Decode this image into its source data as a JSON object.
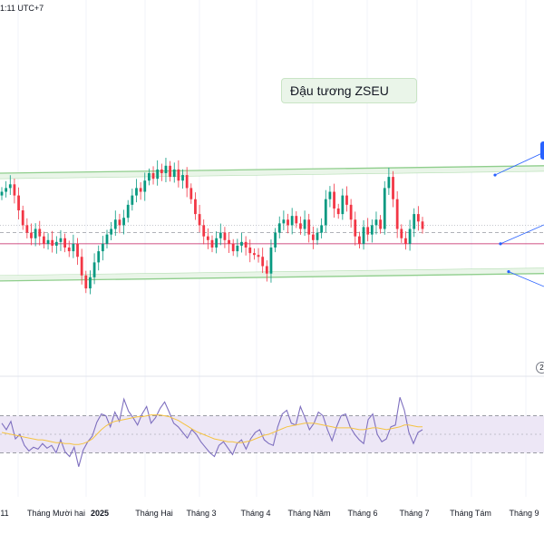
{
  "header": {
    "timestamp": "1:11 UTC+7"
  },
  "annotation": {
    "title": "Đậu tương ZSEU"
  },
  "marker": {
    "label": "2"
  },
  "colors": {
    "up": "#089981",
    "down": "#f23645",
    "channel": "#8fce8c",
    "channel_fill": "#e9f5e8",
    "support": "#c2185b",
    "rsi_line": "#7e6fbf",
    "rsi_ma": "#f5c342",
    "rsi_band": "#ede7f6",
    "callout": "#2962ff"
  },
  "chart_data": [
    {
      "type": "candlestick",
      "title": "",
      "x_axis_labels": [
        "11",
        "Tháng Mười hai",
        "2025",
        "Tháng Hai",
        "Tháng 3",
        "Tháng 4",
        "Tháng Năm",
        "Tháng 6",
        "Tháng 7",
        "Tháng Tám",
        "Tháng 9"
      ],
      "ylim": [
        0,
        100
      ],
      "channel_upper_start": 80,
      "channel_upper_end": 84,
      "channel_lower_start": 22,
      "channel_lower_end": 26,
      "support_level": 42,
      "dashed_level": 48,
      "dotted_level": 52,
      "close": [
        70,
        72,
        74,
        68,
        60,
        52,
        48,
        45,
        50,
        46,
        42,
        44,
        41,
        43,
        45,
        40,
        38,
        42,
        35,
        25,
        18,
        24,
        32,
        38,
        42,
        47,
        50,
        55,
        52,
        56,
        63,
        68,
        72,
        70,
        76,
        80,
        77,
        82,
        80,
        84,
        78,
        82,
        76,
        79,
        72,
        66,
        58,
        52,
        46,
        44,
        40,
        45,
        48,
        44,
        42,
        38,
        41,
        43,
        40,
        37,
        36,
        35,
        30,
        26,
        40,
        48,
        53,
        55,
        52,
        57,
        53,
        50,
        55,
        47,
        44,
        48,
        52,
        66,
        70,
        61,
        58,
        68,
        63,
        55,
        46,
        42,
        51,
        47,
        52,
        55,
        50,
        72,
        78,
        66,
        50,
        45,
        42,
        50,
        58,
        54,
        50
      ]
    },
    {
      "type": "line",
      "title": "",
      "ylim": [
        0,
        100
      ],
      "band": [
        30,
        70
      ],
      "midline": 50,
      "series": [
        {
          "values": [
            62,
            55,
            64,
            45,
            50,
            38,
            32,
            36,
            34,
            40,
            35,
            38,
            30,
            44,
            31,
            26,
            36,
            15,
            33,
            42,
            48,
            63,
            72,
            70,
            58,
            74,
            64,
            88,
            75,
            68,
            60,
            72,
            80,
            62,
            68,
            78,
            85,
            74,
            62,
            58,
            52,
            46,
            55,
            50,
            42,
            36,
            30,
            26,
            38,
            42,
            35,
            28,
            40,
            44,
            34,
            45,
            52,
            55,
            44,
            40,
            38,
            58,
            72,
            76,
            62,
            60,
            80,
            68,
            55,
            62,
            74,
            70,
            55,
            43,
            58,
            70,
            72,
            58,
            50,
            44,
            40,
            66,
            72,
            50,
            42,
            45,
            58,
            60,
            90,
            76,
            52,
            40,
            52,
            55
          ]
        },
        {
          "values": [
            52,
            51,
            50,
            49,
            48,
            47,
            46,
            45,
            44,
            44,
            43,
            42,
            41,
            41,
            40,
            40,
            39,
            39,
            40,
            42,
            45,
            50,
            55,
            59,
            62,
            64,
            65,
            66,
            67,
            68,
            69,
            69,
            70,
            71,
            71,
            71,
            70,
            69,
            67,
            65,
            62,
            59,
            56,
            53,
            51,
            49,
            47,
            45,
            44,
            43,
            42,
            42,
            41,
            41,
            42,
            43,
            45,
            47,
            49,
            50,
            52,
            54,
            56,
            58,
            59,
            60,
            61,
            62,
            62,
            62,
            61,
            60,
            59,
            58,
            57,
            57,
            57,
            57,
            56,
            55,
            55,
            56,
            57,
            57,
            56,
            55,
            56,
            57,
            58,
            60,
            60,
            59,
            58,
            58
          ]
        }
      ]
    }
  ]
}
